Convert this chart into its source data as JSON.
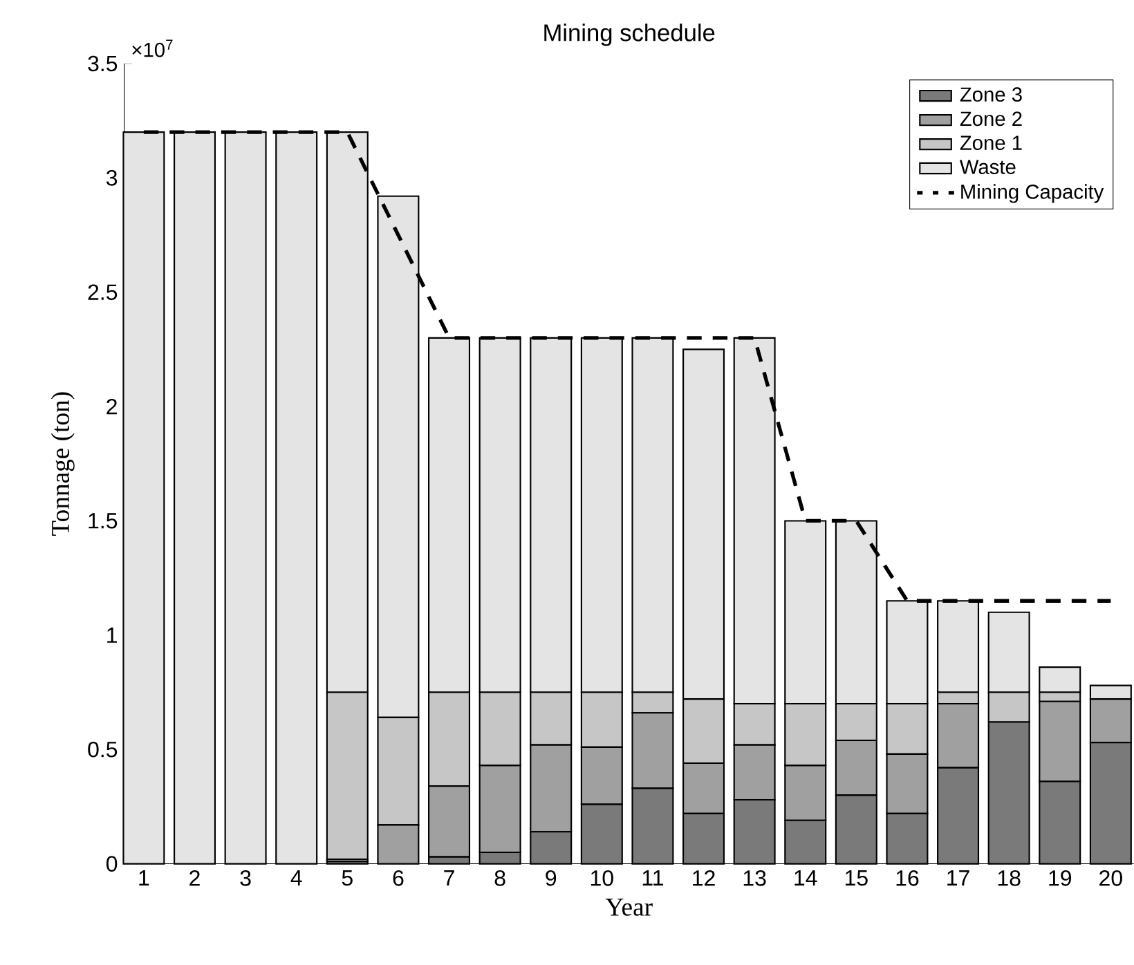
{
  "chart_data": {
    "type": "bar",
    "title": "Mining schedule",
    "xlabel": "Year",
    "ylabel": "Tonnage (ton)",
    "categories": [
      "1",
      "2",
      "3",
      "4",
      "5",
      "6",
      "7",
      "8",
      "9",
      "10",
      "11",
      "12",
      "13",
      "14",
      "15",
      "16",
      "17",
      "18",
      "19",
      "20"
    ],
    "stacked": true,
    "series": [
      {
        "name": "Zone 3",
        "color": "#7a7a7a",
        "values": [
          0,
          0,
          0,
          0,
          0.01,
          0,
          0.03,
          0.05,
          0.14,
          0.26,
          0.33,
          0.22,
          0.28,
          0.19,
          0.3,
          0.22,
          0.42,
          0.62,
          0.36,
          0.53
        ]
      },
      {
        "name": "Zone 2",
        "color": "#a0a0a0",
        "values": [
          0,
          0,
          0,
          0,
          0.01,
          0.17,
          0.31,
          0.38,
          0.38,
          0.25,
          0.33,
          0.22,
          0.24,
          0.24,
          0.24,
          0.26,
          0.28,
          0,
          0.35,
          0.19
        ]
      },
      {
        "name": "Zone 1",
        "color": "#c6c6c6",
        "values": [
          0,
          0,
          0,
          0,
          0.73,
          0.47,
          0.41,
          0.32,
          0.23,
          0.24,
          0.09,
          0.28,
          0.18,
          0.27,
          0.16,
          0.22,
          0.05,
          0.13,
          0.04,
          0
        ]
      },
      {
        "name": "Waste",
        "color": "#e4e4e4",
        "values": [
          3.2,
          3.2,
          3.2,
          3.2,
          2.45,
          2.28,
          1.55,
          1.55,
          1.55,
          1.55,
          1.55,
          1.53,
          1.6,
          0.8,
          0.8,
          0.45,
          0.4,
          0.35,
          0.11,
          0.06
        ]
      },
      {
        "name": "Mining Capacity",
        "type": "line",
        "line_style": "dashed",
        "color": "#000000",
        "values": [
          3.2,
          3.2,
          3.2,
          3.2,
          3.2,
          2.75,
          2.3,
          2.3,
          2.3,
          2.3,
          2.3,
          2.3,
          2.3,
          1.5,
          1.5,
          1.15,
          1.15,
          1.15,
          1.15,
          1.15
        ]
      }
    ],
    "ylim": [
      0,
      3.5
    ],
    "yticks": [
      0,
      0.5,
      1,
      1.5,
      2,
      2.5,
      3,
      3.5
    ],
    "annotations": [
      "×10$^{7}$"
    ],
    "legend": "top right",
    "marker": "none"
  }
}
